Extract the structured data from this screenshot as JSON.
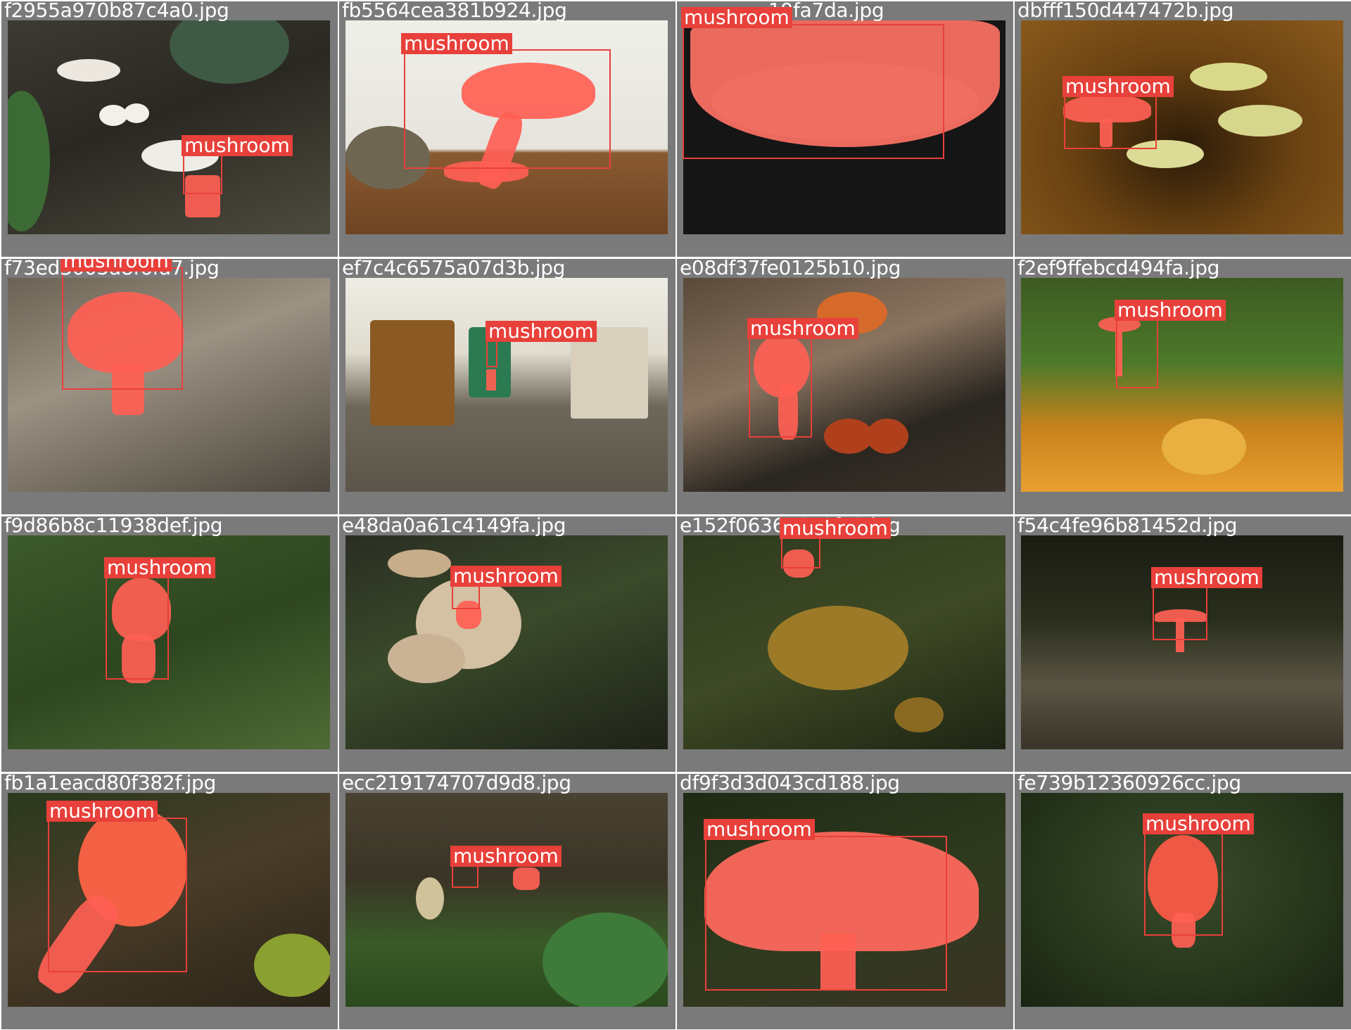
{
  "label": "mushroom",
  "colors": {
    "box": "#e8403a",
    "mask": "#ff6054",
    "cell_bg": "#7a7a7a"
  },
  "tiles": [
    {
      "file": "f2955a970b87c4a0.jpg"
    },
    {
      "file": "fb5564cea381b924.jpg"
    },
    {
      "file": "19fa7da.jpg"
    },
    {
      "file": "dbfff150d447472b.jpg"
    },
    {
      "file": "f73ed3005a8f6fa7.jpg"
    },
    {
      "file": "ef7c4c6575a07d3b.jpg"
    },
    {
      "file": "e08df37fe0125b10.jpg"
    },
    {
      "file": "f2ef9ffebcd494fa.jpg"
    },
    {
      "file": "f9d86b8c11938def.jpg"
    },
    {
      "file": "e48da0a61c4149fa.jpg"
    },
    {
      "file": "e152f0636a872fe9.jpg"
    },
    {
      "file": "f54c4fe96b81452d.jpg"
    },
    {
      "file": "fb1a1eacd80f382f.jpg"
    },
    {
      "file": "ecc219174707d9d8.jpg"
    },
    {
      "file": "df9f3d3d043cd188.jpg"
    },
    {
      "file": "fe739b12360926cc.jpg"
    }
  ]
}
